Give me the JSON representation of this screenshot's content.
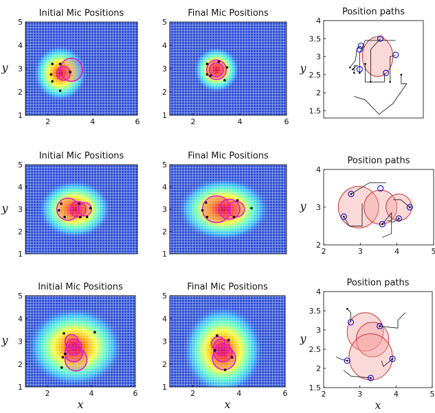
{
  "panels": [
    {
      "title": "Initial Mic Positions",
      "kind": "heatmap",
      "xlim": [
        1,
        6
      ],
      "ylim": [
        1,
        5
      ],
      "xticks": [
        {
          "v": 2,
          "l": "2"
        },
        {
          "v": 4,
          "l": "4"
        },
        {
          "v": 6,
          "l": "6"
        }
      ],
      "yticks": [
        {
          "v": 1,
          "l": "1"
        },
        {
          "v": 2,
          "l": "2"
        },
        {
          "v": 3,
          "l": "3"
        },
        {
          "v": 4,
          "l": "4"
        },
        {
          "v": 5,
          "l": "5"
        }
      ],
      "xlabel": "",
      "ylabel": "y",
      "source": {
        "x": 2.55,
        "y": 2.8,
        "sx": 0.55,
        "sy": 0.55
      },
      "circles": [
        {
          "x": 3.05,
          "y": 2.95,
          "r": 0.5
        },
        {
          "x": 2.7,
          "y": 2.8,
          "r": 0.3
        }
      ],
      "mics": [
        [
          2.2,
          3.2
        ],
        [
          2.55,
          3.2
        ],
        [
          3.0,
          2.85
        ],
        [
          2.15,
          2.75
        ],
        [
          2.2,
          2.45
        ],
        [
          2.55,
          2.05
        ]
      ]
    },
    {
      "title": "Final Mic Positions",
      "kind": "heatmap",
      "xlim": [
        1,
        6
      ],
      "ylim": [
        1,
        5
      ],
      "xticks": [
        {
          "v": 2,
          "l": "2"
        },
        {
          "v": 4,
          "l": "4"
        },
        {
          "v": 6,
          "l": "6"
        }
      ],
      "yticks": [
        {
          "v": 1,
          "l": "1"
        },
        {
          "v": 2,
          "l": "2"
        },
        {
          "v": 3,
          "l": "3"
        },
        {
          "v": 4,
          "l": "4"
        },
        {
          "v": 5,
          "l": "5"
        }
      ],
      "xlabel": "",
      "ylabel": "",
      "source": {
        "x": 3.0,
        "y": 2.95,
        "sx": 0.45,
        "sy": 0.45
      },
      "circles": [
        {
          "x": 3.0,
          "y": 2.95,
          "r": 0.42
        },
        {
          "x": 3.0,
          "y": 2.95,
          "r": 0.3
        }
      ],
      "mics": [
        [
          2.6,
          3.2
        ],
        [
          3.1,
          3.3
        ],
        [
          3.45,
          3.05
        ],
        [
          2.6,
          2.75
        ],
        [
          2.75,
          2.7
        ],
        [
          3.35,
          2.5
        ]
      ]
    },
    {
      "title": "Position paths",
      "kind": "paths",
      "xlim": [
        1.4,
        5.0
      ],
      "ylim": [
        1.3,
        4.0
      ],
      "xticks": [],
      "yticks": [
        {
          "v": 1.5,
          "l": "1.5"
        },
        {
          "v": 2,
          "l": "2"
        },
        {
          "v": 2.5,
          "l": "2.5"
        },
        {
          "v": 3,
          "l": "3"
        },
        {
          "v": 3.5,
          "l": "3.5"
        },
        {
          "v": 4,
          "l": "4"
        }
      ],
      "xlabel": "",
      "ylabel": "y",
      "circles": [
        {
          "x": 3.35,
          "y": 3.0,
          "r": 0.55
        }
      ],
      "mics": [
        [
          2.75,
          3.3
        ],
        [
          3.45,
          3.5
        ],
        [
          4.0,
          3.05
        ],
        [
          2.7,
          2.65
        ],
        [
          3.65,
          2.55
        ],
        [
          2.7,
          3.2
        ]
      ],
      "paths": [
        [
          [
            2.7,
            2.55
          ],
          [
            2.7,
            3.1
          ],
          [
            2.9,
            3.45
          ],
          [
            4.0,
            3.45
          ]
        ],
        [
          [
            2.35,
            2.7
          ],
          [
            2.55,
            2.9
          ],
          [
            2.6,
            3.2
          ],
          [
            2.75,
            3.3
          ]
        ],
        [
          [
            2.5,
            2.55
          ],
          [
            2.5,
            2.75
          ],
          [
            2.65,
            2.75
          ]
        ],
        [
          [
            3.1,
            2.3
          ],
          [
            3.1,
            3.2
          ],
          [
            3.45,
            3.5
          ]
        ],
        [
          [
            2.9,
            2.8
          ],
          [
            2.9,
            2.3
          ],
          [
            3.6,
            2.3
          ],
          [
            3.6,
            2.55
          ]
        ],
        [
          [
            3.8,
            2.3
          ],
          [
            3.8,
            3.0
          ],
          [
            4.0,
            3.05
          ]
        ],
        [
          [
            4.2,
            2.5
          ],
          [
            4.2,
            2.25
          ],
          [
            4.4,
            2.25
          ],
          [
            3.9,
            1.7
          ],
          [
            3.4,
            1.4
          ],
          [
            2.9,
            1.8
          ],
          [
            2.5,
            1.9
          ]
        ],
        [
          [
            2.45,
            2.65
          ],
          [
            2.6,
            2.75
          ]
        ]
      ]
    },
    {
      "title": "Initial Mic Positions",
      "kind": "heatmap",
      "xlim": [
        1,
        6
      ],
      "ylim": [
        1,
        5
      ],
      "xticks": [],
      "yticks": [
        {
          "v": 1,
          "l": "1"
        },
        {
          "v": 2,
          "l": "2"
        },
        {
          "v": 3,
          "l": "3"
        },
        {
          "v": 4,
          "l": "4"
        },
        {
          "v": 5,
          "l": "5"
        }
      ],
      "xlabel": "",
      "ylabel": "y",
      "source": {
        "x": 3.2,
        "y": 3.0,
        "sx": 0.75,
        "sy": 0.6
      },
      "circles": [
        {
          "x": 2.9,
          "y": 3.0,
          "r": 0.5
        },
        {
          "x": 3.35,
          "y": 3.0,
          "r": 0.35
        },
        {
          "x": 3.65,
          "y": 3.0,
          "r": 0.3
        }
      ],
      "mics": [
        [
          2.6,
          3.25
        ],
        [
          3.4,
          3.25
        ],
        [
          2.5,
          2.95
        ],
        [
          3.9,
          3.05
        ],
        [
          2.75,
          2.65
        ],
        [
          3.45,
          2.65
        ],
        [
          3.75,
          2.65
        ]
      ]
    },
    {
      "title": "Final Mic Positions",
      "kind": "heatmap",
      "xlim": [
        1,
        6
      ],
      "ylim": [
        1,
        5
      ],
      "xticks": [],
      "yticks": [
        {
          "v": 1,
          "l": "1"
        },
        {
          "v": 2,
          "l": "2"
        },
        {
          "v": 3,
          "l": "3"
        },
        {
          "v": 4,
          "l": "4"
        },
        {
          "v": 5,
          "l": "5"
        }
      ],
      "xlabel": "",
      "ylabel": "",
      "source": {
        "x": 3.3,
        "y": 3.0,
        "sx": 0.9,
        "sy": 0.65
      },
      "circles": [
        {
          "x": 3.0,
          "y": 3.0,
          "r": 0.6
        },
        {
          "x": 3.55,
          "y": 3.0,
          "r": 0.45
        },
        {
          "x": 3.85,
          "y": 3.0,
          "r": 0.35
        }
      ],
      "mics": [
        [
          2.55,
          3.3
        ],
        [
          3.9,
          3.4
        ],
        [
          2.4,
          2.95
        ],
        [
          4.5,
          3.05
        ],
        [
          2.6,
          2.65
        ],
        [
          3.75,
          2.65
        ]
      ]
    },
    {
      "title": "Position paths",
      "kind": "paths",
      "xlim": [
        2,
        5
      ],
      "ylim": [
        2,
        4
      ],
      "xticks": [
        {
          "v": 2,
          "l": "2"
        },
        {
          "v": 3,
          "l": "3"
        },
        {
          "v": 4,
          "l": "4"
        },
        {
          "v": 5,
          "l": "5"
        }
      ],
      "yticks": [
        {
          "v": 2,
          "l": "2"
        },
        {
          "v": 3,
          "l": "3"
        },
        {
          "v": 4,
          "l": "4"
        }
      ],
      "xlabel": "",
      "ylabel": "y",
      "circles": [
        {
          "x": 2.95,
          "y": 3.0,
          "r": 0.55
        },
        {
          "x": 3.55,
          "y": 3.0,
          "r": 0.45
        },
        {
          "x": 4.05,
          "y": 3.0,
          "r": 0.35
        }
      ],
      "mics": [
        [
          2.75,
          3.35
        ],
        [
          3.55,
          3.5
        ],
        [
          2.55,
          2.75
        ],
        [
          4.35,
          3.0
        ],
        [
          3.6,
          2.55
        ],
        [
          4.05,
          2.7
        ]
      ],
      "paths": [
        [
          [
            2.75,
            3.35
          ],
          [
            3.25,
            3.65
          ],
          [
            3.7,
            3.65
          ]
        ],
        [
          [
            2.55,
            2.75
          ],
          [
            2.7,
            2.5
          ],
          [
            3.05,
            2.5
          ],
          [
            3.05,
            3.1
          ]
        ],
        [
          [
            3.6,
            2.55
          ],
          [
            3.85,
            2.85
          ],
          [
            3.85,
            2.3
          ],
          [
            3.6,
            2.2
          ]
        ],
        [
          [
            4.35,
            3.0
          ],
          [
            4.1,
            3.2
          ],
          [
            3.9,
            3.2
          ]
        ],
        [
          [
            4.05,
            2.7
          ],
          [
            3.9,
            2.6
          ],
          [
            3.75,
            2.65
          ]
        ]
      ]
    },
    {
      "title": "Initial Mic Positions",
      "kind": "heatmap",
      "xlim": [
        1,
        6
      ],
      "ylim": [
        1,
        5
      ],
      "xticks": [
        {
          "v": 2,
          "l": "2"
        },
        {
          "v": 4,
          "l": "4"
        },
        {
          "v": 6,
          "l": "6"
        }
      ],
      "yticks": [
        {
          "v": 1,
          "l": "1"
        },
        {
          "v": 2,
          "l": "2"
        },
        {
          "v": 3,
          "l": "3"
        },
        {
          "v": 4,
          "l": "4"
        },
        {
          "v": 5,
          "l": "5"
        }
      ],
      "xlabel": "x",
      "ylabel": "y",
      "source": {
        "x": 3.25,
        "y": 2.75,
        "sx": 1.0,
        "sy": 0.8
      },
      "circles": [
        {
          "x": 3.3,
          "y": 2.2,
          "r": 0.5
        },
        {
          "x": 3.2,
          "y": 2.5,
          "r": 0.4
        },
        {
          "x": 3.2,
          "y": 2.75,
          "r": 0.35
        },
        {
          "x": 3.1,
          "y": 3.0,
          "r": 0.3
        }
      ],
      "mics": [
        [
          2.75,
          3.35
        ],
        [
          4.15,
          3.4
        ],
        [
          2.7,
          2.3
        ],
        [
          2.8,
          2.45
        ],
        [
          2.65,
          1.85
        ]
      ]
    },
    {
      "title": "Final Mic Positions",
      "kind": "heatmap",
      "xlim": [
        1,
        6
      ],
      "ylim": [
        1,
        5
      ],
      "xticks": [
        {
          "v": 2,
          "l": "2"
        },
        {
          "v": 4,
          "l": "4"
        },
        {
          "v": 6,
          "l": "6"
        }
      ],
      "yticks": [
        {
          "v": 1,
          "l": "1"
        },
        {
          "v": 2,
          "l": "2"
        },
        {
          "v": 3,
          "l": "3"
        },
        {
          "v": 4,
          "l": "4"
        },
        {
          "v": 5,
          "l": "5"
        }
      ],
      "xlabel": "x",
      "ylabel": "",
      "source": {
        "x": 3.3,
        "y": 2.6,
        "sx": 0.8,
        "sy": 0.9
      },
      "circles": [
        {
          "x": 3.35,
          "y": 2.25,
          "r": 0.5
        },
        {
          "x": 3.3,
          "y": 2.5,
          "r": 0.4
        },
        {
          "x": 3.25,
          "y": 2.75,
          "r": 0.35
        },
        {
          "x": 3.1,
          "y": 2.9,
          "r": 0.3
        }
      ],
      "mics": [
        [
          3.05,
          3.25
        ],
        [
          3.55,
          3.05
        ],
        [
          2.95,
          2.6
        ],
        [
          3.7,
          2.3
        ],
        [
          3.4,
          1.75
        ]
      ]
    },
    {
      "title": "Position paths",
      "kind": "paths",
      "xlim": [
        2,
        5
      ],
      "ylim": [
        1.5,
        4.0
      ],
      "xticks": [
        {
          "v": 2,
          "l": "2"
        },
        {
          "v": 3,
          "l": "3"
        },
        {
          "v": 4,
          "l": "4"
        },
        {
          "v": 5,
          "l": "5"
        }
      ],
      "yticks": [
        {
          "v": 1.5,
          "l": "1.5"
        },
        {
          "v": 2,
          "l": "2"
        },
        {
          "v": 2.5,
          "l": "2.5"
        },
        {
          "v": 3,
          "l": "3"
        },
        {
          "v": 3.5,
          "l": "3.5"
        },
        {
          "v": 4,
          "l": "4"
        }
      ],
      "xlabel": "x",
      "ylabel": "y",
      "circles": [
        {
          "x": 3.15,
          "y": 2.95,
          "r": 0.5
        },
        {
          "x": 3.35,
          "y": 2.75,
          "r": 0.45
        },
        {
          "x": 3.3,
          "y": 2.3,
          "r": 0.6
        }
      ],
      "mics": [
        [
          2.75,
          3.2
        ],
        [
          3.55,
          3.1
        ],
        [
          2.65,
          2.2
        ],
        [
          3.9,
          2.25
        ],
        [
          3.3,
          1.75
        ]
      ],
      "paths": [
        [
          [
            2.65,
            3.55
          ],
          [
            2.75,
            3.45
          ],
          [
            2.75,
            3.2
          ]
        ],
        [
          [
            3.55,
            3.1
          ],
          [
            4.05,
            3.05
          ],
          [
            4.05,
            3.25
          ],
          [
            4.25,
            3.45
          ]
        ],
        [
          [
            2.65,
            2.2
          ],
          [
            2.45,
            2.25
          ],
          [
            2.35,
            2.3
          ]
        ],
        [
          [
            3.9,
            2.25
          ],
          [
            3.65,
            2.05
          ],
          [
            3.6,
            2.2
          ]
        ],
        [
          [
            3.3,
            1.75
          ],
          [
            2.75,
            1.8
          ],
          [
            2.55,
            1.95
          ]
        ]
      ]
    }
  ]
}
